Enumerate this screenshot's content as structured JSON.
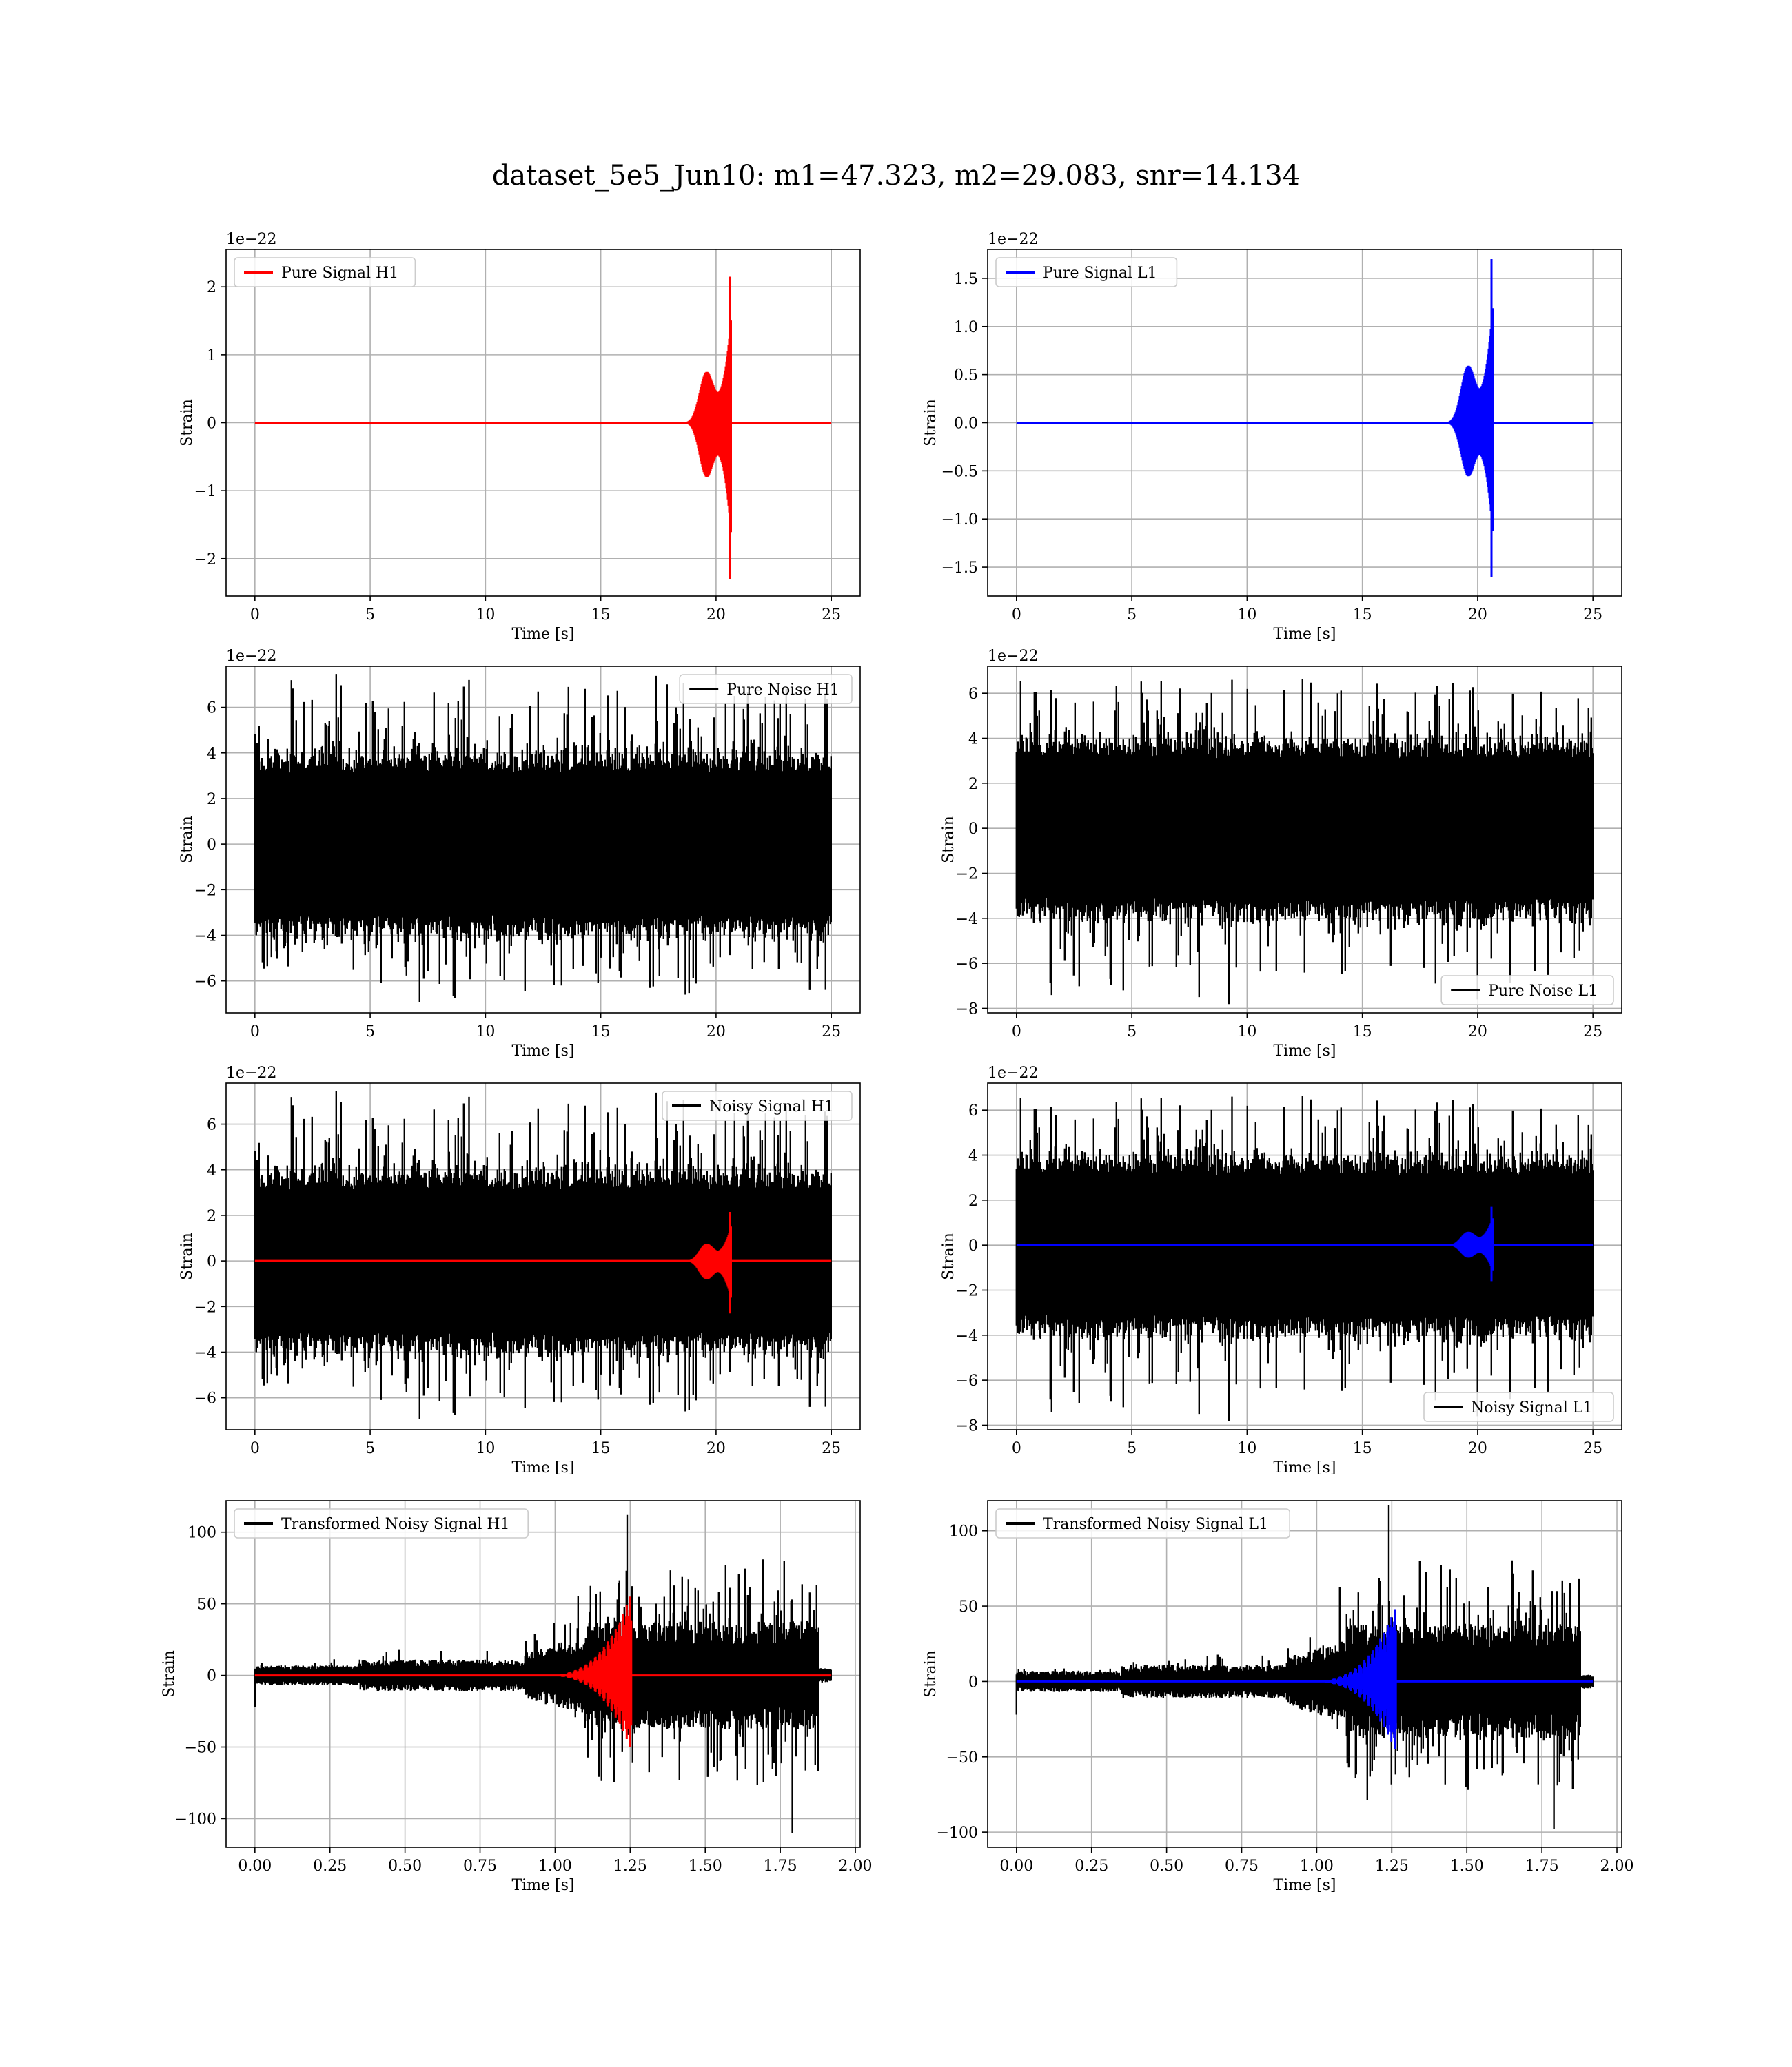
{
  "figure": {
    "title": "dataset_5e5_Jun10: m1=47.323, m2=29.083, snr=14.134"
  },
  "colors": {
    "red": "#ff0000",
    "blue": "#0000ff",
    "black": "#000000",
    "grid": "#b0b0b0"
  },
  "chart_data": [
    {
      "id": "pure-signal-h1",
      "type": "line",
      "xlabel": "Time [s]",
      "ylabel": "Strain",
      "y_offset_label": "1e−22",
      "xlim": [
        -1.25,
        26.25
      ],
      "ylim": [
        -2.55,
        2.55
      ],
      "xticks": [
        0,
        5,
        10,
        15,
        20,
        25
      ],
      "xtick_labels": [
        "0",
        "5",
        "10",
        "15",
        "20",
        "25"
      ],
      "yticks": [
        -2,
        -1,
        0,
        1,
        2
      ],
      "ytick_labels": [
        "−2",
        "−1",
        "0",
        "1",
        "2"
      ],
      "grid": true,
      "legend_position": "upper-left",
      "series": [
        {
          "name": "Pure Signal H1",
          "kind": "chirp",
          "color": "#ff0000",
          "x_range": [
            0,
            25
          ],
          "merger_x": 20.6,
          "amp_pos": 2.15,
          "amp_neg": 2.3
        }
      ]
    },
    {
      "id": "pure-signal-l1",
      "type": "line",
      "xlabel": "Time [s]",
      "ylabel": "Strain",
      "y_offset_label": "1e−22",
      "xlim": [
        -1.25,
        26.25
      ],
      "ylim": [
        -1.8,
        1.8
      ],
      "xticks": [
        0,
        5,
        10,
        15,
        20,
        25
      ],
      "xtick_labels": [
        "0",
        "5",
        "10",
        "15",
        "20",
        "25"
      ],
      "yticks": [
        -1.5,
        -1.0,
        -0.5,
        0.0,
        0.5,
        1.0,
        1.5
      ],
      "ytick_labels": [
        "−1.5",
        "−1.0",
        "−0.5",
        "0.0",
        "0.5",
        "1.0",
        "1.5"
      ],
      "grid": true,
      "legend_position": "upper-left",
      "series": [
        {
          "name": "Pure Signal L1",
          "kind": "chirp",
          "color": "#0000ff",
          "x_range": [
            0,
            25
          ],
          "merger_x": 20.6,
          "amp_pos": 1.7,
          "amp_neg": 1.6
        }
      ]
    },
    {
      "id": "pure-noise-h1",
      "type": "line",
      "xlabel": "Time [s]",
      "ylabel": "Strain",
      "y_offset_label": "1e−22",
      "xlim": [
        -1.25,
        26.25
      ],
      "ylim": [
        -7.4,
        7.8
      ],
      "xticks": [
        0,
        5,
        10,
        15,
        20,
        25
      ],
      "xtick_labels": [
        "0",
        "5",
        "10",
        "15",
        "20",
        "25"
      ],
      "yticks": [
        -6,
        -4,
        -2,
        0,
        2,
        4,
        6
      ],
      "ytick_labels": [
        "−6",
        "−4",
        "−2",
        "0",
        "2",
        "4",
        "6"
      ],
      "grid": true,
      "legend_position": "upper-right",
      "series": [
        {
          "name": "Pure Noise H1",
          "kind": "noise",
          "color": "#000000",
          "x_range": [
            0,
            25
          ],
          "band": 3.1,
          "peak": 7.2,
          "trough": -6.6,
          "seed": 11
        }
      ]
    },
    {
      "id": "pure-noise-l1",
      "type": "line",
      "xlabel": "Time [s]",
      "ylabel": "Strain",
      "y_offset_label": "1e−22",
      "xlim": [
        -1.25,
        26.25
      ],
      "ylim": [
        -8.2,
        7.2
      ],
      "xticks": [
        0,
        5,
        10,
        15,
        20,
        25
      ],
      "xtick_labels": [
        "0",
        "5",
        "10",
        "15",
        "20",
        "25"
      ],
      "yticks": [
        -8,
        -6,
        -4,
        -2,
        0,
        2,
        4,
        6
      ],
      "ytick_labels": [
        "−8",
        "−6",
        "−4",
        "−2",
        "0",
        "2",
        "4",
        "6"
      ],
      "grid": true,
      "legend_position": "lower-right",
      "series": [
        {
          "name": "Pure Noise L1",
          "kind": "noise",
          "color": "#000000",
          "x_range": [
            0,
            25
          ],
          "band": 3.1,
          "peak": 6.6,
          "trough": -7.6,
          "seed": 23
        }
      ]
    },
    {
      "id": "noisy-signal-h1",
      "type": "line",
      "xlabel": "Time [s]",
      "ylabel": "Strain",
      "y_offset_label": "1e−22",
      "xlim": [
        -1.25,
        26.25
      ],
      "ylim": [
        -7.4,
        7.8
      ],
      "xticks": [
        0,
        5,
        10,
        15,
        20,
        25
      ],
      "xtick_labels": [
        "0",
        "5",
        "10",
        "15",
        "20",
        "25"
      ],
      "yticks": [
        -6,
        -4,
        -2,
        0,
        2,
        4,
        6
      ],
      "ytick_labels": [
        "−6",
        "−4",
        "−2",
        "0",
        "2",
        "4",
        "6"
      ],
      "grid": true,
      "legend_position": "upper-right",
      "series": [
        {
          "name": "Noisy Signal H1",
          "kind": "noise",
          "color": "#000000",
          "x_range": [
            0,
            25
          ],
          "band": 3.1,
          "peak": 7.2,
          "trough": -6.6,
          "seed": 11
        },
        {
          "name": "",
          "kind": "chirp",
          "color": "#ff0000",
          "x_range": [
            0,
            25
          ],
          "merger_x": 20.6,
          "amp_pos": 2.15,
          "amp_neg": 2.3
        }
      ]
    },
    {
      "id": "noisy-signal-l1",
      "type": "line",
      "xlabel": "Time [s]",
      "ylabel": "Strain",
      "y_offset_label": "1e−22",
      "xlim": [
        -1.25,
        26.25
      ],
      "ylim": [
        -8.2,
        7.2
      ],
      "xticks": [
        0,
        5,
        10,
        15,
        20,
        25
      ],
      "xtick_labels": [
        "0",
        "5",
        "10",
        "15",
        "20",
        "25"
      ],
      "yticks": [
        -8,
        -6,
        -4,
        -2,
        0,
        2,
        4,
        6
      ],
      "ytick_labels": [
        "−8",
        "−6",
        "−4",
        "−2",
        "0",
        "2",
        "4",
        "6"
      ],
      "grid": true,
      "legend_position": "lower-right",
      "series": [
        {
          "name": "Noisy Signal L1",
          "kind": "noise",
          "color": "#000000",
          "x_range": [
            0,
            25
          ],
          "band": 3.1,
          "peak": 6.6,
          "trough": -7.6,
          "seed": 23
        },
        {
          "name": "",
          "kind": "chirp",
          "color": "#0000ff",
          "x_range": [
            0,
            25
          ],
          "merger_x": 20.6,
          "amp_pos": 1.7,
          "amp_neg": 1.6
        }
      ]
    },
    {
      "id": "transformed-noisy-signal-h1",
      "type": "line",
      "xlabel": "Time [s]",
      "ylabel": "Strain",
      "y_offset_label": "",
      "xlim": [
        -0.096,
        2.016
      ],
      "ylim": [
        -120,
        122
      ],
      "xticks": [
        0,
        0.25,
        0.5,
        0.75,
        1.0,
        1.25,
        1.5,
        1.75,
        2.0
      ],
      "xtick_labels": [
        "0.00",
        "0.25",
        "0.50",
        "0.75",
        "1.00",
        "1.25",
        "1.50",
        "1.75",
        "2.00"
      ],
      "yticks": [
        -100,
        -50,
        0,
        50,
        100
      ],
      "ytick_labels": [
        "−100",
        "−50",
        "0",
        "50",
        "100"
      ],
      "grid": true,
      "legend_position": "upper-left",
      "series": [
        {
          "name": "Transformed Noisy Signal H1",
          "kind": "whitened",
          "color": "#000000",
          "x_range": [
            0,
            1.92
          ],
          "seed": 37,
          "peak": 112,
          "trough": -110
        },
        {
          "name": "",
          "kind": "chirp-fast",
          "color": "#ff0000",
          "x_range": [
            0,
            1.92
          ],
          "merger_x": 1.25,
          "amp_pos": 55,
          "amp_neg": 50
        }
      ]
    },
    {
      "id": "transformed-noisy-signal-l1",
      "type": "line",
      "xlabel": "Time [s]",
      "ylabel": "Strain",
      "y_offset_label": "",
      "xlim": [
        -0.096,
        2.016
      ],
      "ylim": [
        -110,
        120
      ],
      "xticks": [
        0,
        0.25,
        0.5,
        0.75,
        1.0,
        1.25,
        1.5,
        1.75,
        2.0
      ],
      "xtick_labels": [
        "0.00",
        "0.25",
        "0.50",
        "0.75",
        "1.00",
        "1.25",
        "1.50",
        "1.75",
        "2.00"
      ],
      "yticks": [
        -100,
        -50,
        0,
        50,
        100
      ],
      "ytick_labels": [
        "−100",
        "−50",
        "0",
        "50",
        "100"
      ],
      "grid": true,
      "legend_position": "upper-left",
      "series": [
        {
          "name": "Transformed Noisy Signal L1",
          "kind": "whitened",
          "color": "#000000",
          "x_range": [
            0,
            1.92
          ],
          "seed": 53,
          "peak": 117,
          "trough": -98
        },
        {
          "name": "",
          "kind": "chirp-fast",
          "color": "#0000ff",
          "x_range": [
            0,
            1.92
          ],
          "merger_x": 1.26,
          "amp_pos": 48,
          "amp_neg": 45
        }
      ]
    }
  ]
}
